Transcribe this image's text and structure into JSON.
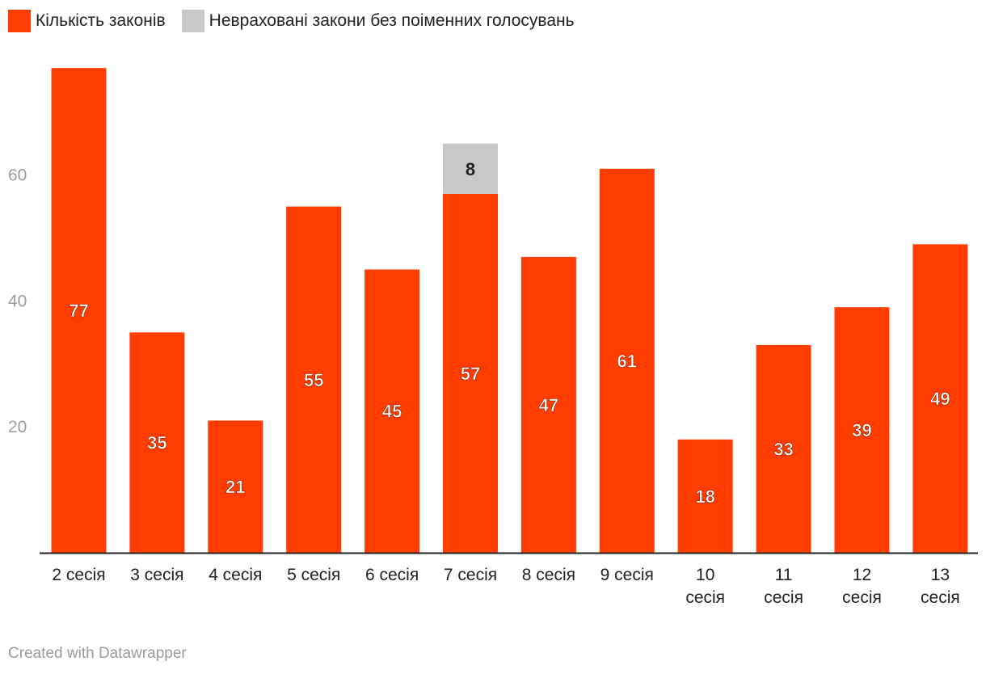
{
  "legend": [
    {
      "label": "Кількість законів",
      "color": "#ff3d00"
    },
    {
      "label": "Невраховані закони без поіменних голосувань",
      "color": "#c8c8c8"
    }
  ],
  "chart_data": {
    "type": "bar",
    "stacked": true,
    "categories": [
      [
        "2 сесія"
      ],
      [
        "3 сесія"
      ],
      [
        "4 сесія"
      ],
      [
        "5 сесія"
      ],
      [
        "6 сесія"
      ],
      [
        "7 сесія"
      ],
      [
        "8 сесія"
      ],
      [
        "9 сесія"
      ],
      [
        "10",
        "сесія"
      ],
      [
        "11",
        "сесія"
      ],
      [
        "12",
        "сесія"
      ],
      [
        "13",
        "сесія"
      ]
    ],
    "series": [
      {
        "name": "Кількість законів",
        "color": "#ff3d00",
        "values": [
          77,
          35,
          21,
          55,
          45,
          57,
          47,
          61,
          18,
          33,
          39,
          49
        ]
      },
      {
        "name": "Невраховані закони без поіменних голосувань",
        "color": "#c8c8c8",
        "values": [
          0,
          0,
          0,
          0,
          0,
          8,
          0,
          0,
          0,
          0,
          0,
          0
        ]
      }
    ],
    "yticks": [
      20,
      40,
      60
    ],
    "ylim": [
      0,
      80
    ],
    "grid": false
  },
  "footer": "Created with Datawrapper"
}
